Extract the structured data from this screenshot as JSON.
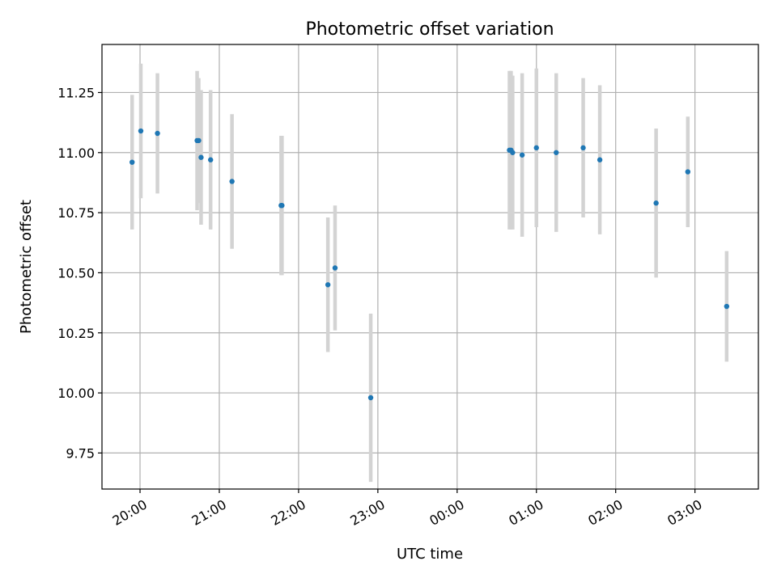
{
  "chart_data": {
    "type": "scatter",
    "title": "Photometric offset variation",
    "xlabel": "UTC time",
    "ylabel": "Photometric offset",
    "x_unit": "UTC time (hours after 00:00 on first night; values >24 are the next day)",
    "xlim": [
      19.52,
      27.8
    ],
    "ylim": [
      9.6,
      11.45
    ],
    "grid": true,
    "x_ticks": [
      {
        "value": 20,
        "label": "20:00"
      },
      {
        "value": 21,
        "label": "21:00"
      },
      {
        "value": 22,
        "label": "22:00"
      },
      {
        "value": 23,
        "label": "23:00"
      },
      {
        "value": 24,
        "label": "00:00"
      },
      {
        "value": 25,
        "label": "01:00"
      },
      {
        "value": 26,
        "label": "02:00"
      },
      {
        "value": 27,
        "label": "03:00"
      }
    ],
    "y_ticks": [
      {
        "value": 9.75,
        "label": "9.75"
      },
      {
        "value": 10.0,
        "label": "10.00"
      },
      {
        "value": 10.25,
        "label": "10.25"
      },
      {
        "value": 10.5,
        "label": "10.50"
      },
      {
        "value": 10.75,
        "label": "10.75"
      },
      {
        "value": 11.0,
        "label": "11.00"
      },
      {
        "value": 11.25,
        "label": "11.25"
      }
    ],
    "series": [
      {
        "marker_color": "#1f77b4",
        "errorbar_color": "#d3d3d3",
        "points": [
          {
            "time": "19:54",
            "x": 19.9,
            "y": 10.96,
            "err": 0.28
          },
          {
            "time": "20:00",
            "x": 20.01,
            "y": 11.09,
            "err": 0.28
          },
          {
            "time": "20:13",
            "x": 20.22,
            "y": 11.08,
            "err": 0.25
          },
          {
            "time": "20:43",
            "x": 20.72,
            "y": 11.05,
            "err": 0.29
          },
          {
            "time": "20:45",
            "x": 20.74,
            "y": 11.05,
            "err": 0.26
          },
          {
            "time": "20:46",
            "x": 20.77,
            "y": 10.98,
            "err": 0.28
          },
          {
            "time": "20:53",
            "x": 20.89,
            "y": 10.97,
            "err": 0.29
          },
          {
            "time": "21:10",
            "x": 21.16,
            "y": 10.88,
            "err": 0.28
          },
          {
            "time": "21:47",
            "x": 21.78,
            "y": 10.78,
            "err": 0.29
          },
          {
            "time": "21:48",
            "x": 21.79,
            "y": 10.78,
            "err": 0.29
          },
          {
            "time": "22:22",
            "x": 22.37,
            "y": 10.45,
            "err": 0.28
          },
          {
            "time": "22:27",
            "x": 22.46,
            "y": 10.52,
            "err": 0.26
          },
          {
            "time": "22:54",
            "x": 22.91,
            "y": 9.98,
            "err": 0.35
          },
          {
            "time": "00:39",
            "x": 24.66,
            "y": 11.01,
            "err": 0.33
          },
          {
            "time": "00:41",
            "x": 24.68,
            "y": 11.01,
            "err": 0.33
          },
          {
            "time": "00:42",
            "x": 24.7,
            "y": 11.0,
            "err": 0.32
          },
          {
            "time": "00:49",
            "x": 24.82,
            "y": 10.99,
            "err": 0.34
          },
          {
            "time": "01:00",
            "x": 25.0,
            "y": 11.02,
            "err": 0.33
          },
          {
            "time": "01:15",
            "x": 25.25,
            "y": 11.0,
            "err": 0.33
          },
          {
            "time": "01:35",
            "x": 25.59,
            "y": 11.02,
            "err": 0.29
          },
          {
            "time": "01:48",
            "x": 25.8,
            "y": 10.97,
            "err": 0.31
          },
          {
            "time": "02:30",
            "x": 26.51,
            "y": 10.79,
            "err": 0.31
          },
          {
            "time": "02:54",
            "x": 26.91,
            "y": 10.92,
            "err": 0.23
          },
          {
            "time": "03:24",
            "x": 27.4,
            "y": 10.36,
            "err": 0.23
          }
        ]
      }
    ]
  }
}
